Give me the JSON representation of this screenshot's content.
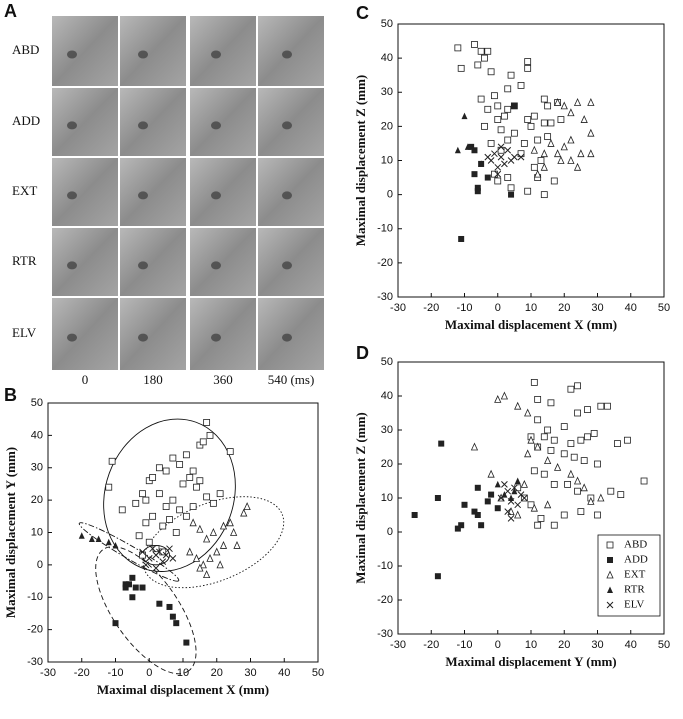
{
  "panel_a": {
    "label": "A",
    "rows": [
      "ABD",
      "ADD",
      "EXT",
      "RTR",
      "ELV"
    ],
    "times": [
      "0",
      "180",
      "360",
      "540 (ms)"
    ]
  },
  "chart_data": [
    {
      "type": "scatter",
      "label": "B",
      "x_label": "Maximal displacement X (mm)",
      "y_label": "Maximal displacement Y (mm)",
      "xlim": [
        -30,
        50
      ],
      "ylim": [
        -30,
        50
      ],
      "xticks": [
        -30,
        -20,
        -10,
        0,
        10,
        20,
        30,
        40,
        50
      ],
      "yticks": [
        -30,
        -20,
        -10,
        0,
        10,
        20,
        30,
        40,
        50
      ],
      "series": [
        {
          "marker": "square-open",
          "color": "#222",
          "x": [
            -11,
            -12,
            -8,
            -4,
            -2,
            0,
            1,
            3,
            5,
            7,
            9,
            11,
            13,
            15,
            16,
            17,
            18,
            24,
            15,
            12,
            10,
            14,
            17,
            19,
            21,
            3,
            5,
            7,
            9,
            11,
            1,
            -1,
            4,
            6,
            8,
            -3,
            0,
            2,
            -2,
            4,
            13,
            -1
          ],
          "y": [
            32,
            24,
            17,
            19,
            22,
            26,
            27,
            30,
            29,
            33,
            31,
            34,
            29,
            37,
            38,
            44,
            40,
            35,
            26,
            27,
            25,
            24,
            21,
            19,
            22,
            22,
            18,
            20,
            17,
            15,
            15,
            13,
            12,
            14,
            10,
            9,
            7,
            5,
            3,
            4,
            18,
            20
          ]
        },
        {
          "marker": "square-filled",
          "color": "#222",
          "x": [
            -10,
            -7,
            -6,
            -5,
            -5,
            -4,
            -2,
            3,
            6,
            7,
            8,
            11,
            -7
          ],
          "y": [
            -18,
            -7,
            -6,
            -10,
            -4,
            -7,
            -7,
            -12,
            -13,
            -16,
            -18,
            -24,
            -6
          ]
        },
        {
          "marker": "triangle-open",
          "color": "#222",
          "x": [
            13,
            15,
            17,
            19,
            22,
            24,
            25,
            28,
            29,
            26,
            22,
            20,
            18,
            16,
            15,
            14,
            12,
            21,
            17
          ],
          "y": [
            13,
            11,
            8,
            10,
            12,
            13,
            10,
            16,
            18,
            6,
            6,
            4,
            2,
            0,
            -1,
            2,
            4,
            0,
            -3
          ]
        },
        {
          "marker": "triangle-filled",
          "color": "#222",
          "x": [
            -20,
            -17,
            -15,
            -12,
            -10
          ],
          "y": [
            9,
            8,
            8,
            7,
            6
          ]
        },
        {
          "marker": "cross",
          "color": "#222",
          "x": [
            -2,
            0,
            1,
            2,
            3,
            4,
            5,
            -1,
            2,
            6,
            7
          ],
          "y": [
            4,
            2,
            5,
            3,
            4,
            1,
            3,
            0,
            -1,
            5,
            2
          ]
        }
      ],
      "ellipses": [
        {
          "center": [
            6,
            21.5
          ],
          "radii": [
            19,
            24
          ],
          "angle": -20,
          "style": "solid"
        },
        {
          "center": [
            19,
            7
          ],
          "radii": [
            22,
            12
          ],
          "angle": 22,
          "style": "dotted"
        },
        {
          "center": [
            -1,
            -14
          ],
          "radii": [
            22,
            10
          ],
          "angle": -55,
          "style": "dashed"
        },
        {
          "center": [
            -6,
            4
          ],
          "radii": [
            17,
            2
          ],
          "angle": -30,
          "style": "dashdot"
        },
        {
          "center": [
            2,
            3
          ],
          "radii": [
            4,
            3
          ],
          "angle": 0,
          "style": "solid"
        }
      ]
    },
    {
      "type": "scatter",
      "label": "C",
      "x_label": "Maximal displacement X (mm)",
      "y_label": "Maximal displacement Z (mm)",
      "xlim": [
        -30,
        50
      ],
      "ylim": [
        -30,
        50
      ],
      "xticks": [
        -30,
        -20,
        -10,
        0,
        10,
        20,
        30,
        40,
        50
      ],
      "yticks": [
        -30,
        -20,
        -10,
        0,
        10,
        20,
        30,
        40,
        50
      ],
      "series": [
        {
          "marker": "square-open",
          "color": "#222",
          "x": [
            -12,
            -7,
            -5,
            -4,
            -3,
            -11,
            -6,
            -2,
            4,
            9,
            9,
            3,
            -5,
            -1,
            0,
            3,
            5,
            7,
            14,
            18,
            15,
            9,
            10,
            11,
            16,
            19,
            2,
            -3,
            0,
            1,
            -4,
            5,
            8,
            12,
            15,
            1,
            3,
            -2,
            7,
            13,
            0,
            3,
            4,
            9,
            12,
            14,
            17,
            -1,
            11,
            14
          ],
          "y": [
            43,
            44,
            42,
            40,
            42,
            37,
            38,
            36,
            35,
            39,
            37,
            31,
            28,
            29,
            26,
            25,
            26,
            32,
            28,
            27,
            26,
            22,
            20,
            23,
            21,
            22,
            23,
            25,
            22,
            19,
            20,
            18,
            15,
            16,
            17,
            13,
            16,
            15,
            12,
            10,
            4,
            5,
            2,
            1,
            5,
            0,
            4,
            6,
            8,
            21
          ]
        },
        {
          "marker": "square-filled",
          "color": "#222",
          "x": [
            -11,
            -7,
            -8,
            -7,
            -6,
            -6,
            -5,
            -3,
            5,
            4
          ],
          "y": [
            -13,
            13,
            14,
            6,
            2,
            1,
            9,
            5,
            26,
            0
          ]
        },
        {
          "marker": "triangle-open",
          "color": "#222",
          "x": [
            18,
            20,
            24,
            28,
            26,
            28,
            22,
            20,
            18,
            25,
            22,
            19,
            14,
            14,
            12,
            24,
            28,
            22,
            11,
            16
          ],
          "y": [
            27,
            26,
            27,
            27,
            22,
            18,
            16,
            14,
            12,
            12,
            10,
            10,
            12,
            8,
            6,
            8,
            12,
            24,
            13,
            15
          ]
        },
        {
          "marker": "triangle-filled",
          "color": "#222",
          "x": [
            -12,
            -9,
            -10,
            -5
          ],
          "y": [
            13,
            14,
            23,
            9
          ]
        },
        {
          "marker": "cross",
          "color": "#222",
          "x": [
            -2,
            -1,
            1,
            0,
            2,
            3,
            -3,
            5,
            0,
            4,
            7,
            1
          ],
          "y": [
            10,
            12,
            11,
            8,
            9,
            13,
            11,
            11,
            6,
            10,
            11,
            14
          ]
        }
      ]
    },
    {
      "type": "scatter",
      "label": "D",
      "x_label": "Maximal displacement Y (mm)",
      "y_label": "Maximal displacement Z (mm)",
      "xlim": [
        -30,
        50
      ],
      "ylim": [
        -30,
        50
      ],
      "xticks": [
        -30,
        -20,
        -10,
        0,
        10,
        20,
        30,
        40,
        50
      ],
      "yticks": [
        -30,
        -20,
        -10,
        0,
        10,
        20,
        30,
        40,
        50
      ],
      "legend": "lower right",
      "series": [
        {
          "name": "ABD",
          "marker": "square-open",
          "color": "#222",
          "x": [
            11,
            12,
            16,
            22,
            24,
            12,
            24,
            27,
            31,
            33,
            15,
            20,
            22,
            25,
            27,
            29,
            10,
            14,
            17,
            12,
            16,
            20,
            23,
            26,
            30,
            36,
            39,
            44,
            34,
            37,
            11,
            14,
            17,
            21,
            24,
            28,
            30,
            10,
            13,
            17,
            20,
            25,
            12,
            8,
            6
          ],
          "y": [
            44,
            39,
            38,
            42,
            43,
            33,
            35,
            36,
            37,
            37,
            30,
            31,
            26,
            27,
            28,
            29,
            28,
            28,
            27,
            25,
            24,
            23,
            22,
            21,
            20,
            26,
            27,
            15,
            12,
            11,
            18,
            17,
            14,
            14,
            12,
            10,
            5,
            8,
            4,
            2,
            5,
            6,
            2,
            10,
            13
          ]
        },
        {
          "name": "ADD",
          "marker": "square-filled",
          "color": "#222",
          "x": [
            -18,
            -25,
            -18,
            -17,
            -12,
            -11,
            -10,
            -7,
            -6,
            -6,
            -5,
            -3,
            0,
            -2
          ],
          "y": [
            -13,
            5,
            10,
            26,
            1,
            2,
            8,
            6,
            5,
            13,
            2,
            9,
            7,
            11
          ]
        },
        {
          "name": "EXT",
          "marker": "triangle-open",
          "color": "#222",
          "x": [
            0,
            2,
            6,
            9,
            10,
            12,
            9,
            15,
            18,
            22,
            24,
            26,
            28,
            31,
            -7,
            1,
            4,
            6,
            11,
            15,
            -2,
            8
          ],
          "y": [
            39,
            40,
            37,
            35,
            27,
            25,
            23,
            21,
            19,
            17,
            15,
            13,
            9,
            10,
            25,
            10,
            6,
            5,
            7,
            8,
            17,
            14
          ]
        },
        {
          "name": "RTR",
          "marker": "triangle-filled",
          "color": "#222",
          "x": [
            0,
            2,
            5,
            6,
            4
          ],
          "y": [
            14,
            11,
            12,
            15,
            10
          ]
        },
        {
          "name": "ELV",
          "marker": "cross",
          "color": "#222",
          "x": [
            1,
            3,
            4,
            5,
            6,
            7,
            3,
            2,
            8,
            4
          ],
          "y": [
            10,
            12,
            9,
            13,
            8,
            11,
            6,
            14,
            10,
            4
          ]
        }
      ]
    }
  ]
}
